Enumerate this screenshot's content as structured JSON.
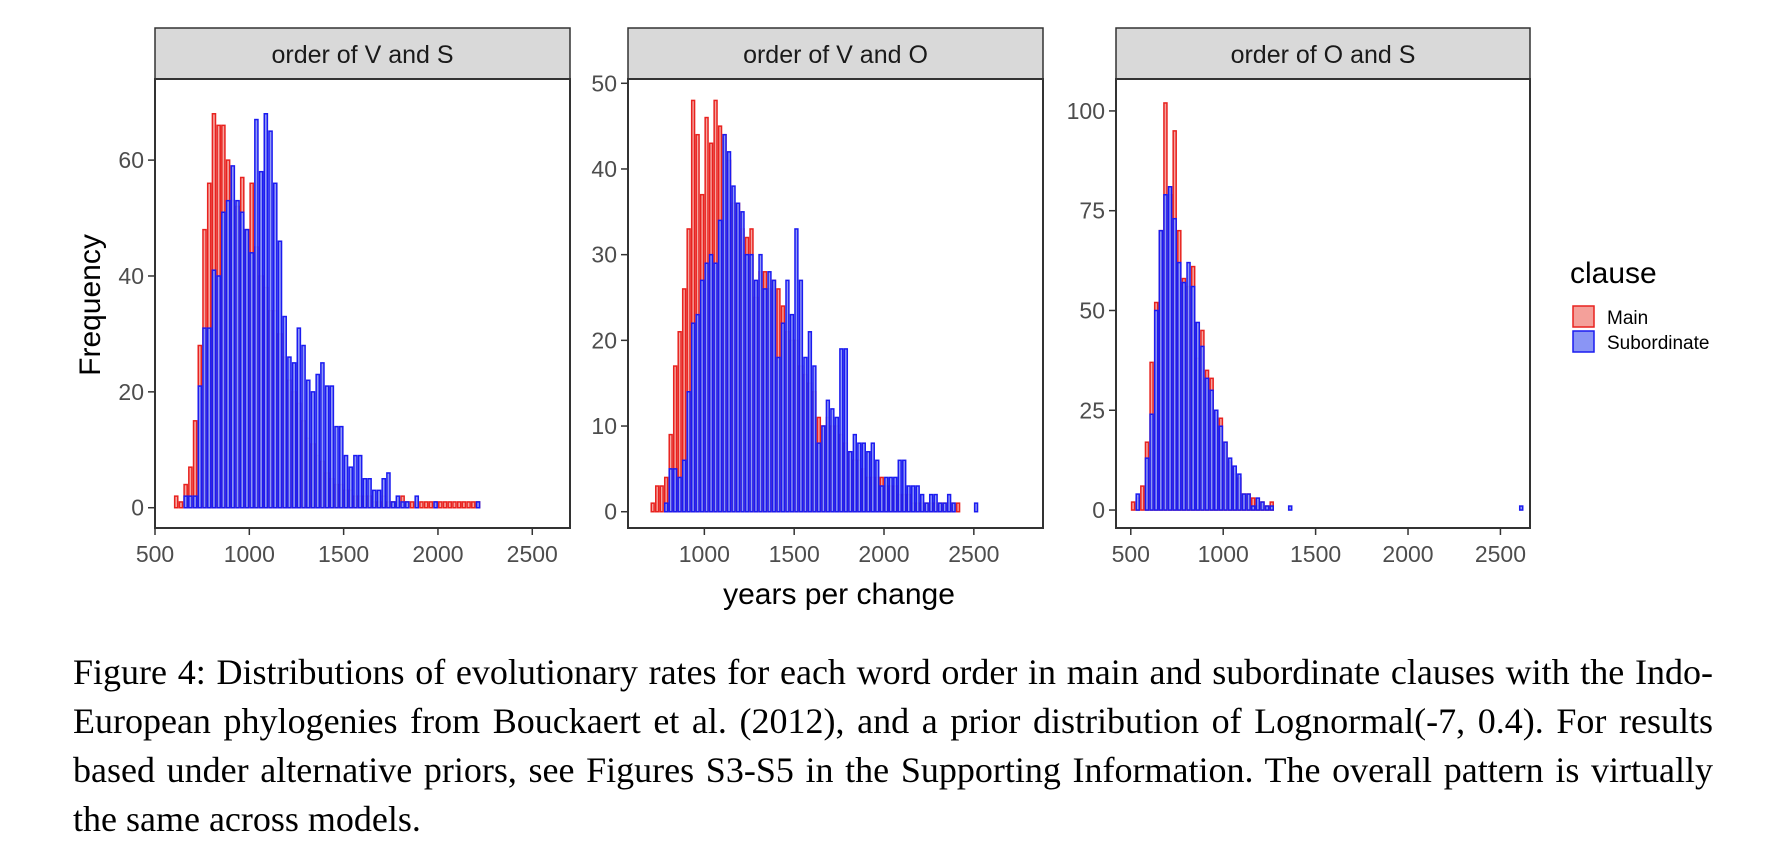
{
  "chart_data": {
    "type": "bar",
    "subtype": "histogram",
    "xlabel": "years per change",
    "ylabel": "Frequency",
    "legend": {
      "title": "clause",
      "position": "right",
      "entries": [
        {
          "name": "Main",
          "fill": "#f4a09a",
          "stroke": "#e8221f"
        },
        {
          "name": "Subordinate",
          "fill": "#8a95f5",
          "stroke": "#1b1bf0"
        }
      ]
    },
    "grid": false,
    "bin_width": 25,
    "panels": [
      {
        "strip": "order of V and S",
        "xlim": [
          500,
          2700
        ],
        "ylim": [
          -3.5,
          74
        ],
        "x_ticks": [
          500,
          1000,
          1500,
          2000,
          2500
        ],
        "y_ticks": [
          0,
          20,
          40,
          60
        ],
        "series": [
          {
            "name": "Main",
            "start": 600,
            "values": [
              2,
              1,
              4,
              7,
              15,
              28,
              48,
              56,
              68,
              66,
              66,
              60,
              53,
              52,
              57,
              48,
              56,
              45,
              40,
              38,
              34,
              34,
              30,
              26,
              22,
              20,
              18,
              15,
              12,
              11,
              9,
              8,
              6,
              5,
              4,
              4,
              3,
              3,
              2,
              2,
              2,
              2,
              1,
              1,
              2,
              1,
              1,
              1,
              2,
              1,
              1,
              1,
              1,
              1,
              1,
              1,
              1,
              1,
              1,
              1,
              1,
              1,
              1,
              1,
              1
            ]
          },
          {
            "name": "Subordinate",
            "start": 600,
            "values": [
              0,
              0,
              2,
              2,
              2,
              21,
              31,
              31,
              41,
              40,
              51,
              53,
              59,
              53,
              51,
              48,
              44,
              67,
              58,
              68,
              65,
              56,
              46,
              33,
              26,
              25,
              31,
              28,
              22,
              20,
              23,
              25,
              21,
              21,
              14,
              14,
              9,
              7,
              9,
              9,
              5,
              5,
              3,
              3,
              5,
              6,
              1,
              2,
              1,
              1,
              0,
              2,
              0,
              0,
              0,
              1,
              0,
              0,
              0,
              0,
              0,
              0,
              0,
              0,
              1
            ]
          }
        ]
      },
      {
        "strip": "order of V and O",
        "xlim": [
          575,
          2885
        ],
        "ylim": [
          -1.9,
          50.5
        ],
        "x_ticks": [
          1000,
          1500,
          2000,
          2500
        ],
        "y_ticks": [
          0,
          10,
          20,
          30,
          40,
          50
        ],
        "series": [
          {
            "name": "Main",
            "start": 700,
            "values": [
              1,
              3,
              3,
              4,
              9,
              17,
              21,
              26,
              33,
              48,
              44,
              37,
              46,
              43,
              48,
              45,
              44,
              41,
              36,
              36,
              33,
              32,
              33,
              25,
              28,
              28,
              26,
              27,
              26,
              24,
              21,
              20,
              20,
              17,
              16,
              15,
              14,
              11,
              10,
              11,
              10,
              10,
              9,
              8,
              7,
              6,
              6,
              5,
              4,
              4,
              4,
              4,
              3,
              3,
              3,
              2,
              2,
              2,
              1,
              1,
              1,
              1,
              1,
              1,
              1,
              1,
              1,
              1,
              1
            ]
          },
          {
            "name": "Subordinate",
            "start": 700,
            "values": [
              0,
              0,
              0,
              1,
              5,
              5,
              4,
              6,
              14,
              22,
              23,
              27,
              29,
              30,
              29,
              34,
              44,
              42,
              38,
              36,
              35,
              30,
              30,
              27,
              30,
              26,
              28,
              27,
              18,
              22,
              27,
              23,
              33,
              27,
              18,
              21,
              17,
              8,
              10,
              13,
              12,
              11,
              19,
              19,
              7,
              9,
              8,
              8,
              7,
              8,
              6,
              3,
              4,
              4,
              4,
              6,
              6,
              3,
              3,
              3,
              2,
              1,
              2,
              2,
              1,
              1,
              2,
              1,
              0,
              0,
              0,
              0,
              1
            ]
          }
        ]
      },
      {
        "strip": "order of O and S",
        "xlim": [
          420,
          2660
        ],
        "ylim": [
          -4.5,
          108
        ],
        "x_ticks": [
          500,
          1000,
          1500,
          2000,
          2500
        ],
        "y_ticks": [
          0,
          25,
          50,
          75,
          100
        ],
        "series": [
          {
            "name": "Main",
            "start": 500,
            "values": [
              2,
              3,
              6,
              17,
              37,
              52,
              70,
              102,
              79,
              95,
              70,
              58,
              56,
              61,
              38,
              45,
              35,
              33,
              25,
              23,
              17,
              12,
              9,
              8,
              4,
              4,
              3,
              1,
              2,
              1,
              2,
              0,
              0,
              0,
              0,
              0,
              0,
              0,
              0,
              0,
              0,
              0,
              0,
              0,
              0,
              0,
              0,
              0,
              0,
              0,
              0,
              0,
              0,
              0,
              0,
              0,
              0,
              0,
              0,
              0,
              0,
              0,
              0,
              0,
              0,
              0,
              0,
              0,
              0,
              0,
              0,
              0,
              0,
              0,
              0,
              0,
              0,
              0,
              0,
              0,
              0,
              0,
              0,
              0,
              0
            ]
          },
          {
            "name": "Subordinate",
            "start": 500,
            "values": [
              0,
              4,
              0,
              13,
              24,
              50,
              70,
              79,
              81,
              73,
              62,
              57,
              62,
              56,
              47,
              41,
              33,
              30,
              25,
              21,
              17,
              13,
              11,
              9,
              4,
              4,
              1,
              3,
              2,
              1,
              1,
              0,
              0,
              0,
              1,
              0,
              0,
              0,
              0,
              0,
              0,
              0,
              0,
              0,
              0,
              0,
              0,
              0,
              0,
              0,
              0,
              0,
              0,
              0,
              0,
              0,
              0,
              0,
              0,
              0,
              0,
              0,
              0,
              0,
              0,
              0,
              0,
              0,
              0,
              0,
              0,
              0,
              0,
              0,
              0,
              0,
              0,
              0,
              0,
              0,
              0,
              0,
              0,
              0,
              1
            ]
          }
        ]
      }
    ]
  },
  "caption": "Figure 4: Distributions of evolutionary rates for each word order in main and subordinate clauses with the Indo-European phylogenies from Bouckaert et al.  (2012), and a prior distribution of Lognormal(-7, 0.4).  For results based under alternative priors, see Figures S3-S5 in the Supporting Information. The overall pattern is virtually the same across models."
}
